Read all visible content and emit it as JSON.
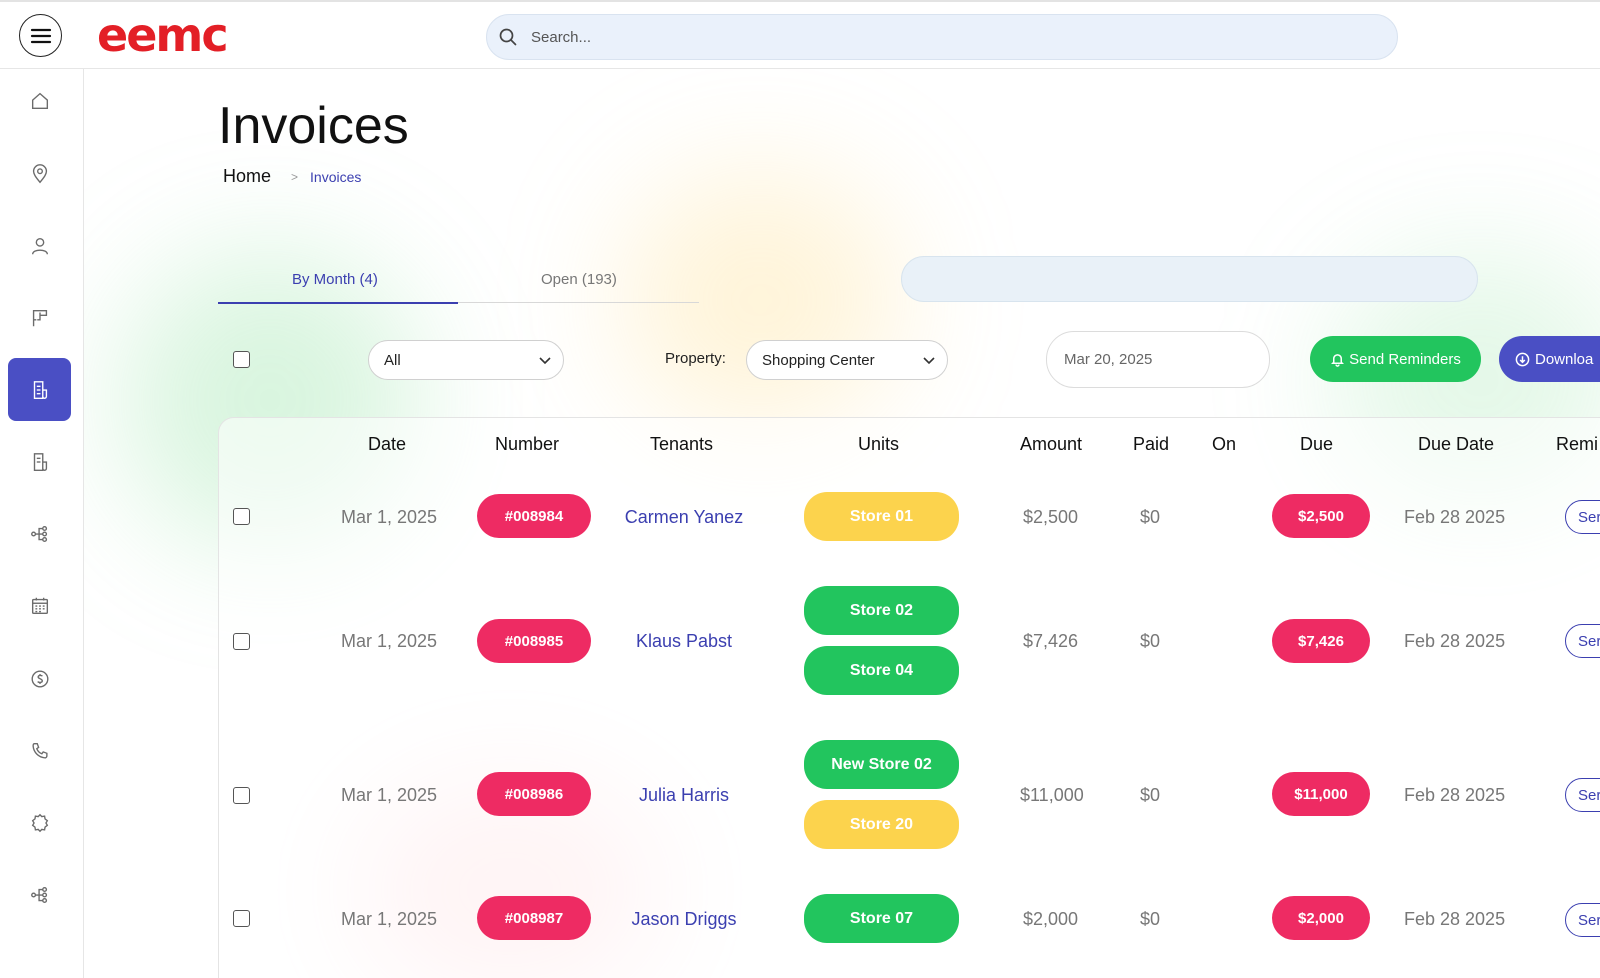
{
  "header": {
    "logo_text": "eemc",
    "search_placeholder": "Search..."
  },
  "sidebar": {
    "items": [
      {
        "icon": "home-icon",
        "active": false
      },
      {
        "icon": "location-icon",
        "active": false
      },
      {
        "icon": "user-icon",
        "active": false
      },
      {
        "icon": "floorplan-icon",
        "active": false
      },
      {
        "icon": "invoice-icon",
        "active": true
      },
      {
        "icon": "document-icon",
        "active": false
      },
      {
        "icon": "network-icon",
        "active": false
      },
      {
        "icon": "calendar-icon",
        "active": false
      },
      {
        "icon": "dollar-icon",
        "active": false
      },
      {
        "icon": "phone-icon",
        "active": false
      },
      {
        "icon": "gear-icon",
        "active": false
      },
      {
        "icon": "network-icon",
        "active": false
      }
    ]
  },
  "page": {
    "title": "Invoices",
    "breadcrumb": {
      "home": "Home",
      "separator": ">",
      "current": "Invoices"
    }
  },
  "tabs": [
    {
      "label": "By Month (4)",
      "active": true
    },
    {
      "label": "Open (193)",
      "active": false
    }
  ],
  "filters": {
    "status_value": "All",
    "property_label": "Property:",
    "property_value": "Shopping Center",
    "date_value": "Mar 20, 2025",
    "send_reminders_label": "Send Reminders",
    "download_label": "Downloa"
  },
  "table": {
    "columns": [
      "Date",
      "Number",
      "Tenants",
      "Units",
      "Amount",
      "Paid",
      "On",
      "Due",
      "Due Date",
      "Remi"
    ],
    "rows": [
      {
        "date": "Mar 1, 2025",
        "number": "#008984",
        "tenant": "Carmen Yanez",
        "units": [
          {
            "name": "Store 01",
            "color": "yellow"
          }
        ],
        "amount": "$2,500",
        "paid": "$0",
        "on": "",
        "due": "$2,500",
        "due_date": "Feb 28 2025",
        "action": "Ser"
      },
      {
        "date": "Mar 1, 2025",
        "number": "#008985",
        "tenant": "Klaus Pabst",
        "units": [
          {
            "name": "Store 02",
            "color": "green"
          },
          {
            "name": "Store 04",
            "color": "green"
          }
        ],
        "amount": "$7,426",
        "paid": "$0",
        "on": "",
        "due": "$7,426",
        "due_date": "Feb 28 2025",
        "action": "Ser"
      },
      {
        "date": "Mar 1, 2025",
        "number": "#008986",
        "tenant": "Julia Harris",
        "units": [
          {
            "name": "New Store 02",
            "color": "green"
          },
          {
            "name": "Store 20",
            "color": "yellow"
          }
        ],
        "amount": "$11,000",
        "paid": "$0",
        "on": "",
        "due": "$11,000",
        "due_date": "Feb 28 2025",
        "action": "Ser"
      },
      {
        "date": "Mar 1, 2025",
        "number": "#008987",
        "tenant": "Jason Driggs",
        "units": [
          {
            "name": "Store 07",
            "color": "green"
          }
        ],
        "amount": "$2,000",
        "paid": "$0",
        "on": "",
        "due": "$2,000",
        "due_date": "Feb 28 2025",
        "action": "Ser"
      }
    ]
  },
  "colors": {
    "brand_red": "#e31f26",
    "accent_blue": "#4a4fc4",
    "pill_pink": "#ee2b63",
    "unit_green": "#22c55e",
    "unit_yellow": "#fcd34d"
  }
}
